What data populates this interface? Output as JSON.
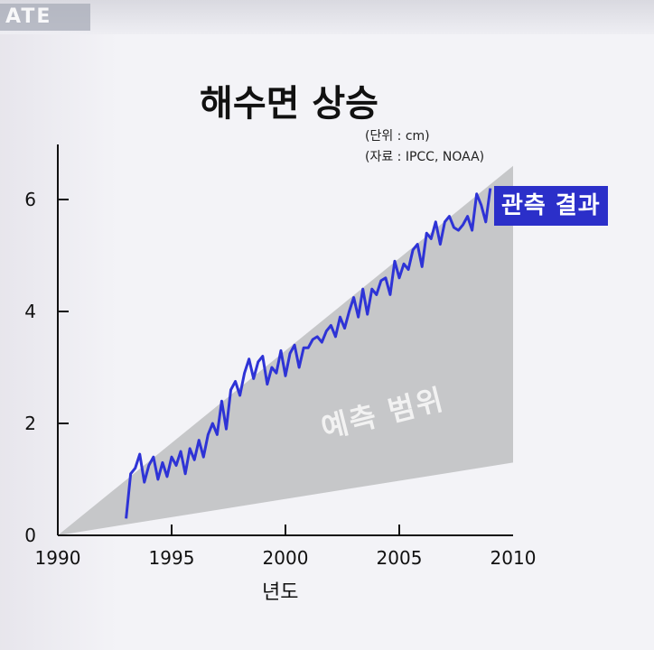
{
  "banner_text": "ATE",
  "chart_data": {
    "type": "area",
    "title": "해수면 상승",
    "unit_note": "(단위 : cm)",
    "source_note": "(자료 : IPCC, NOAA)",
    "xlabel": "년도",
    "ylabel": "",
    "xlim": [
      1990,
      2010
    ],
    "ylim": [
      0,
      6.6
    ],
    "x_ticks": [
      1990,
      1995,
      2000,
      2005,
      2010
    ],
    "y_ticks": [
      0,
      2,
      4,
      6
    ],
    "grid": false,
    "band": {
      "name": "예측 범위",
      "color": "#c6c7c9",
      "upper": [
        [
          1990,
          0
        ],
        [
          2010,
          6.6
        ]
      ],
      "lower": [
        [
          1990,
          0
        ],
        [
          2010,
          1.3
        ]
      ]
    },
    "series": [
      {
        "name": "관측 결과",
        "color": "#2e33d6",
        "x": [
          1993.0,
          1993.2,
          1993.4,
          1993.6,
          1993.8,
          1994.0,
          1994.2,
          1994.4,
          1994.6,
          1994.8,
          1995.0,
          1995.2,
          1995.4,
          1995.6,
          1995.8,
          1996.0,
          1996.2,
          1996.4,
          1996.6,
          1996.8,
          1997.0,
          1997.2,
          1997.4,
          1997.6,
          1997.8,
          1998.0,
          1998.2,
          1998.4,
          1998.6,
          1998.8,
          1999.0,
          1999.2,
          1999.4,
          1999.6,
          1999.8,
          2000.0,
          2000.2,
          2000.4,
          2000.6,
          2000.8,
          2001.0,
          2001.2,
          2001.4,
          2001.6,
          2001.8,
          2002.0,
          2002.2,
          2002.4,
          2002.6,
          2002.8,
          2003.0,
          2003.2,
          2003.4,
          2003.6,
          2003.8,
          2004.0,
          2004.2,
          2004.4,
          2004.6,
          2004.8,
          2005.0,
          2005.2,
          2005.4,
          2005.6,
          2005.8,
          2006.0,
          2006.2,
          2006.4,
          2006.6,
          2006.8,
          2007.0,
          2007.2,
          2007.4,
          2007.6,
          2007.8,
          2008.0,
          2008.2,
          2008.4,
          2008.6,
          2008.8,
          2009.0
        ],
        "values": [
          0.3,
          1.1,
          1.2,
          1.45,
          0.95,
          1.25,
          1.4,
          1.0,
          1.3,
          1.05,
          1.4,
          1.25,
          1.5,
          1.1,
          1.55,
          1.35,
          1.7,
          1.4,
          1.8,
          2.0,
          1.8,
          2.4,
          1.9,
          2.6,
          2.75,
          2.5,
          2.9,
          3.15,
          2.8,
          3.1,
          3.2,
          2.7,
          3.0,
          2.9,
          3.3,
          2.85,
          3.25,
          3.4,
          3.0,
          3.35,
          3.35,
          3.5,
          3.55,
          3.45,
          3.65,
          3.75,
          3.55,
          3.9,
          3.7,
          4.0,
          4.25,
          3.9,
          4.4,
          3.95,
          4.4,
          4.3,
          4.55,
          4.6,
          4.3,
          4.9,
          4.6,
          4.85,
          4.75,
          5.1,
          5.2,
          4.8,
          5.4,
          5.3,
          5.6,
          5.2,
          5.6,
          5.7,
          5.5,
          5.45,
          5.55,
          5.7,
          5.45,
          6.1,
          5.9,
          5.6,
          6.2
        ]
      }
    ]
  }
}
